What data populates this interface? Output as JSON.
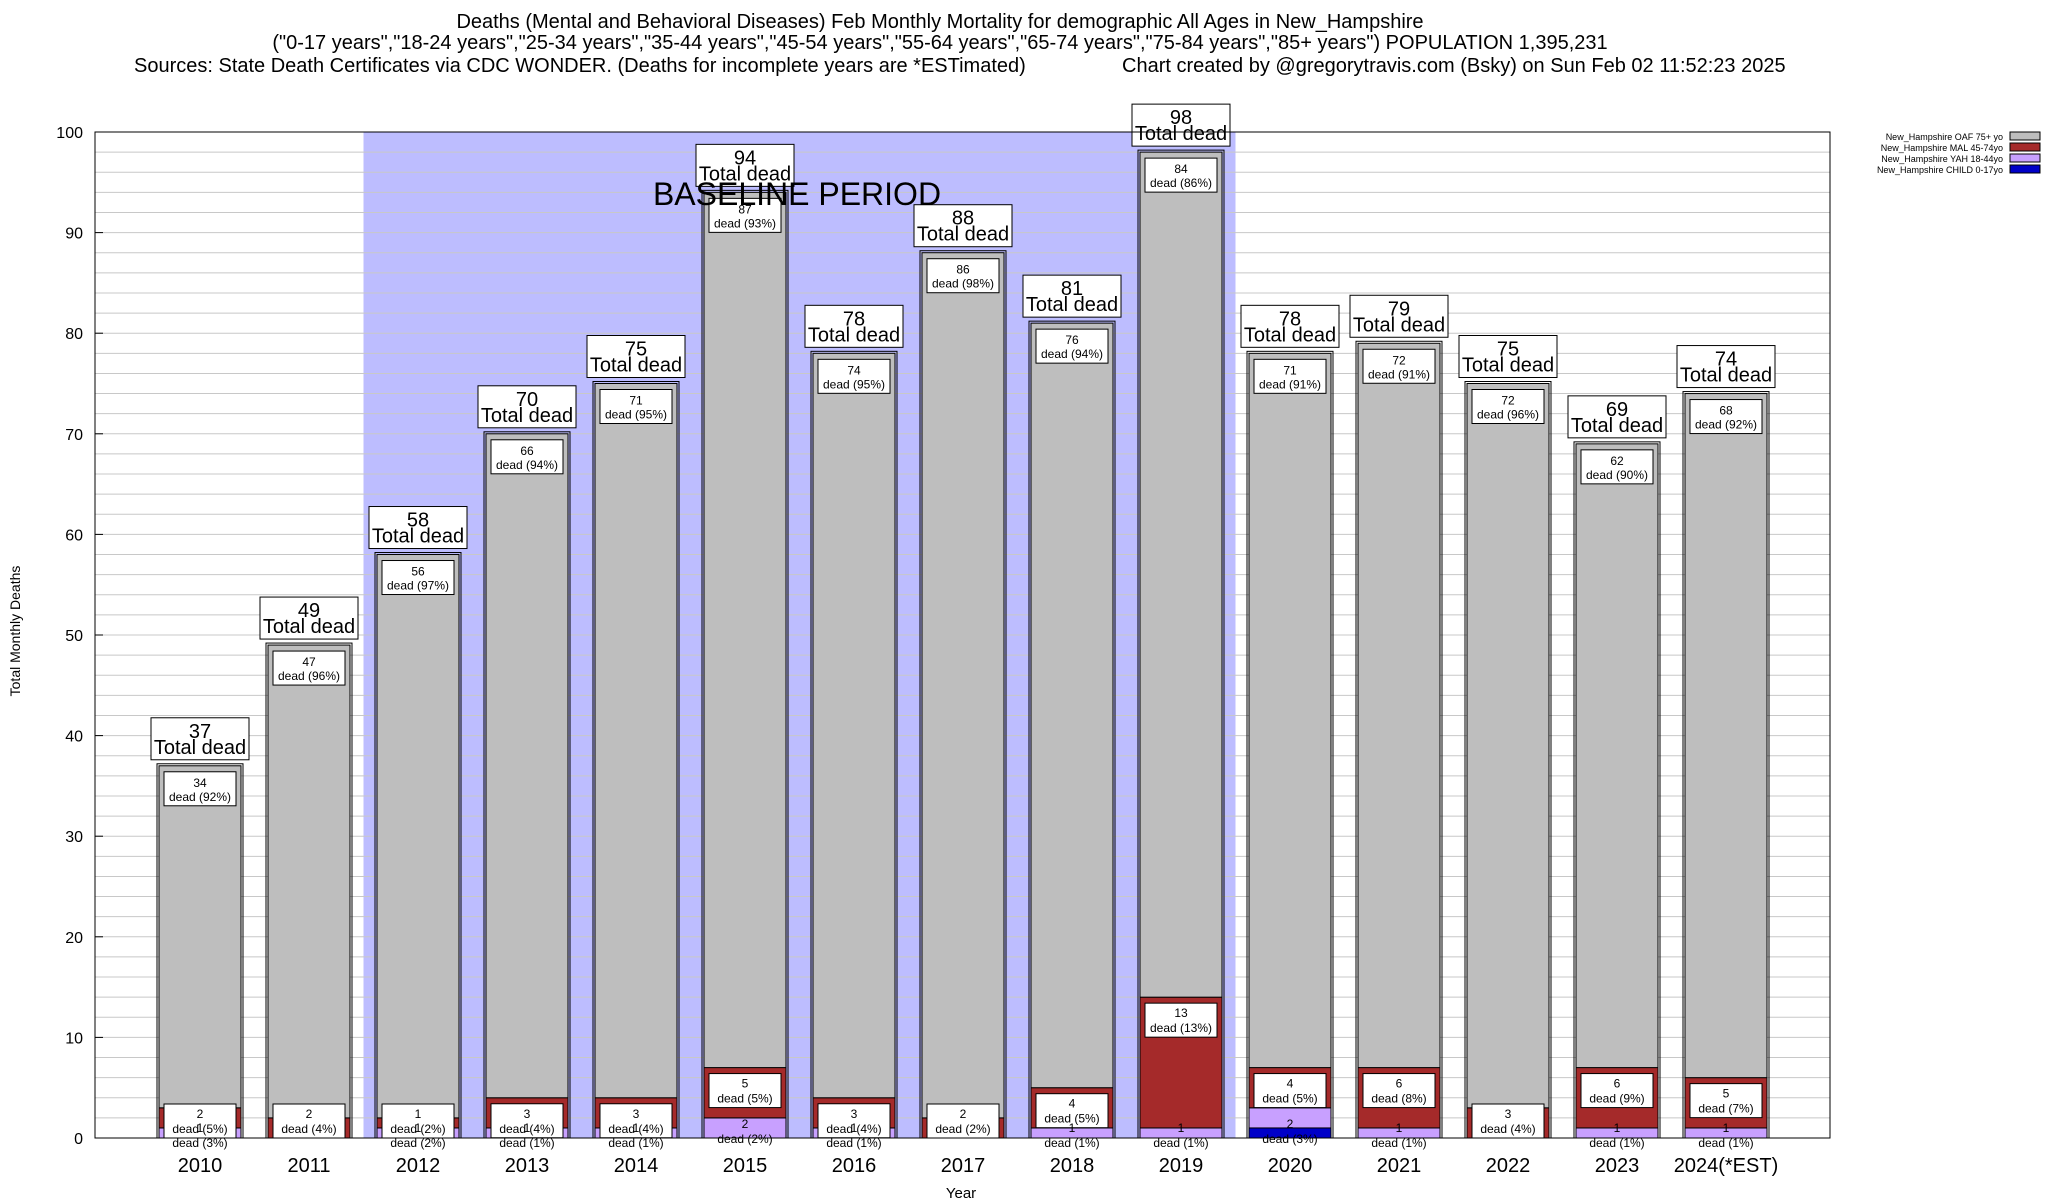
{
  "chart_data": {
    "type": "bar",
    "stacked": true,
    "title": "Deaths (Mental and Behavioral Diseases) Feb Monthly Mortality for demographic All Ages in New_Hampshire",
    "subtitle": "(\"0-17 years\",\"18-24 years\",\"25-34 years\",\"35-44 years\",\"45-54 years\",\"55-64 years\",\"65-74 years\",\"75-84 years\",\"85+ years\") POPULATION 1,395,231",
    "sources": "Sources: State Death Certificates via CDC WONDER. (Deaths for incomplete years are *ESTimated)",
    "credit": "Chart created by @gregorytravis.com (Bsky) on Sun Feb 02 11:52:23 2025",
    "xlabel": "Year",
    "ylabel": "Total Monthly Deaths",
    "ylim": [
      0,
      100
    ],
    "yticks": [
      0,
      10,
      20,
      30,
      40,
      50,
      60,
      70,
      80,
      90,
      100
    ],
    "grid": true,
    "legend_position": "top-right",
    "baseline": {
      "label": "BASELINE PERIOD",
      "start": "2012",
      "end": "2019",
      "color": "#bdbdff"
    },
    "total_label_text": "Total dead",
    "dead_word": "dead",
    "categories": [
      "2010",
      "2011",
      "2012",
      "2013",
      "2014",
      "2015",
      "2016",
      "2017",
      "2018",
      "2019",
      "2020",
      "2021",
      "2022",
      "2023",
      "2024(*EST)"
    ],
    "totals": [
      37,
      49,
      58,
      70,
      75,
      94,
      78,
      88,
      81,
      98,
      78,
      79,
      75,
      69,
      74
    ],
    "series": [
      {
        "name": "New_Hampshire CHILD 0-17yo",
        "color": "#0000c8",
        "values": [
          0,
          0,
          0,
          0,
          0,
          0,
          0,
          0,
          0,
          0,
          1,
          0,
          0,
          0,
          0
        ],
        "pct": [
          "",
          "",
          "",
          "",
          "",
          "",
          "",
          "",
          "",
          "",
          "",
          "",
          "",
          "",
          ""
        ]
      },
      {
        "name": "New_Hampshire YAH 18-44yo",
        "color": "#c8a0ff",
        "values": [
          1,
          0,
          1,
          1,
          1,
          2,
          1,
          0,
          1,
          1,
          2,
          1,
          0,
          1,
          1
        ],
        "pct": [
          "(3%)",
          "",
          "(2%)",
          "(1%)",
          "(1%)",
          "(2%)",
          "(1%)",
          "",
          "(1%)",
          "(1%)",
          "(3%)",
          "(1%)",
          "",
          "(1%)",
          "(1%)"
        ]
      },
      {
        "name": "New_Hampshire MAL 45-74yo",
        "color": "#a52a2a",
        "values": [
          2,
          2,
          1,
          3,
          3,
          5,
          3,
          2,
          4,
          13,
          4,
          6,
          3,
          6,
          5
        ],
        "pct": [
          "(5%)",
          "(4%)",
          "(2%)",
          "(4%)",
          "(4%)",
          "(5%)",
          "(4%)",
          "(2%)",
          "(5%)",
          "(13%)",
          "(5%)",
          "(8%)",
          "(4%)",
          "(9%)",
          "(7%)"
        ]
      },
      {
        "name": "New_Hampshire OAF 75+ yo",
        "color": "#bebebe",
        "values": [
          34,
          47,
          56,
          66,
          71,
          87,
          74,
          86,
          76,
          84,
          71,
          72,
          72,
          62,
          68
        ],
        "pct": [
          "(92%)",
          "(96%)",
          "(97%)",
          "(94%)",
          "(95%)",
          "(93%)",
          "(95%)",
          "(98%)",
          "(94%)",
          "(86%)",
          "(91%)",
          "(91%)",
          "(96%)",
          "(90%)",
          "(92%)"
        ]
      }
    ]
  }
}
